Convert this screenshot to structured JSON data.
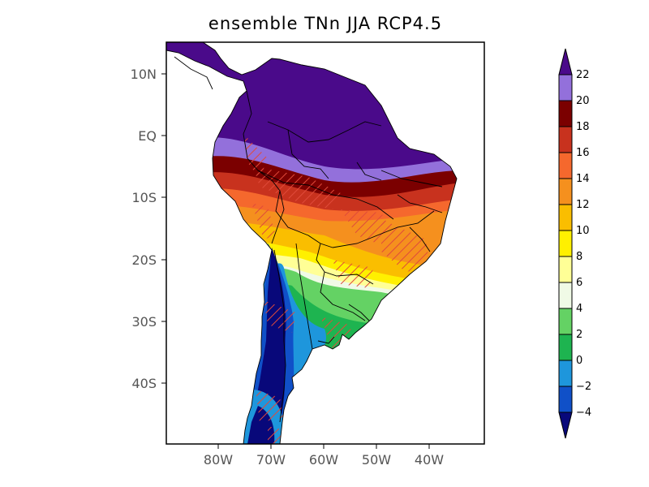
{
  "title": "ensemble TNn JJA RCP4.5",
  "map": {
    "lat_labels": [
      "10N",
      "EQ",
      "10S",
      "20S",
      "30S",
      "40S"
    ],
    "lon_labels": [
      "80W",
      "70W",
      "60W",
      "50W",
      "40W"
    ]
  },
  "colorbar": {
    "tick_labels": [
      "22",
      "20",
      "18",
      "16",
      "14",
      "12",
      "10",
      "8",
      "6",
      "4",
      "2",
      "0",
      "−2",
      "−4"
    ],
    "colors": [
      "#4a0a8a",
      "#9370db",
      "#7b0000",
      "#c8321e",
      "#f5682d",
      "#f5901e",
      "#fabe00",
      "#fff000",
      "#ffff96",
      "#f0fae6",
      "#64d264",
      "#1eb450",
      "#1e96dc",
      "#1050c8",
      "#08087a"
    ],
    "lower_extend_color": "#08087a",
    "upper_extend_color": "#4a0a8a"
  },
  "colors": {
    "hatch": "#e04a3a",
    "border": "#000000",
    "ocean": "#ffffff"
  }
}
